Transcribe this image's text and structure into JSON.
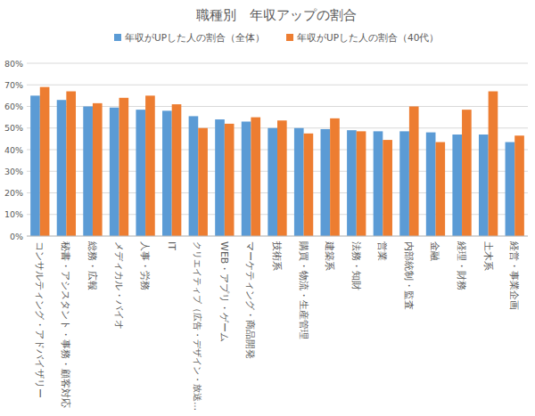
{
  "chart_data": {
    "type": "bar",
    "title": "職種別　年収アップの割合",
    "categories": [
      "コンサルティング・アドバイザリー",
      "秘書・アシスタント・事務・顧客対応",
      "総務・広報",
      "メディカル・バイオ",
      "人事・労務",
      "IT",
      "クリエイティブ（広告・デザイン・放送…",
      "WEB・アプリ・ゲーム",
      "マーケティング・商品開発",
      "技術系",
      "購買・物流・生産管理",
      "建築系",
      "法務・知財",
      "営業",
      "内部統制・監査",
      "金融",
      "経理・財務",
      "土木系",
      "経営・事業企画"
    ],
    "series": [
      {
        "name": "年収がUPした人の割合（全体）",
        "color": "#5b9bd5",
        "values": [
          65,
          63,
          60,
          59.5,
          58.5,
          58,
          55.5,
          54,
          53,
          50,
          50,
          49.5,
          49,
          48.5,
          48.5,
          48,
          47,
          47,
          43.5
        ]
      },
      {
        "name": "年収がUPした人の割合（40代）",
        "color": "#ed7d31",
        "values": [
          69,
          67,
          61.5,
          64,
          65,
          61,
          50,
          52,
          55,
          53.5,
          47.5,
          54.5,
          48.5,
          44.5,
          60,
          43.5,
          58.5,
          67,
          46.5
        ]
      }
    ],
    "ylim": [
      0,
      80
    ],
    "yticks": [
      {
        "value": 0,
        "label": "0%"
      },
      {
        "value": 10,
        "label": "10%"
      },
      {
        "value": 20,
        "label": "20%"
      },
      {
        "value": 30,
        "label": "30%"
      },
      {
        "value": 40,
        "label": "40%"
      },
      {
        "value": 50,
        "label": "50%"
      },
      {
        "value": 60,
        "label": "60%"
      },
      {
        "value": 70,
        "label": "70%"
      },
      {
        "value": 80,
        "label": "80%"
      }
    ],
    "grid": true,
    "legend": "top"
  }
}
